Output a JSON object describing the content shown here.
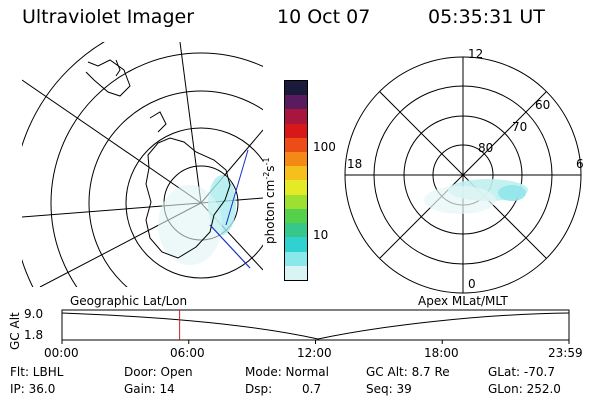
{
  "header": {
    "instrument": "Ultraviolet Imager",
    "date": "10 Oct 07",
    "time": "05:35:31 UT"
  },
  "colorbar": {
    "ticks": [
      "100",
      "10"
    ],
    "unit_prefix": "photon cm",
    "unit_exp1": "-2",
    "unit_s": "s",
    "unit_exp2": "-1",
    "colors": [
      "#d8f4f4",
      "#8ae8ea",
      "#2fd2d0",
      "#35c88a",
      "#54d04a",
      "#9ee032",
      "#e4ea26",
      "#f6c01c",
      "#f48a16",
      "#ee4c16",
      "#d81818",
      "#a81640",
      "#5a1a5e",
      "#1a1a3a"
    ]
  },
  "polar": {
    "lat_labels": [
      "80",
      "70",
      "60"
    ],
    "mlt_labels": {
      "top": "12",
      "left": "18",
      "right": "6",
      "bottom": "0"
    }
  },
  "panels": {
    "left_caption": "Geographic Lat/Lon",
    "right_caption": "Apex MLat/MLT"
  },
  "timeline": {
    "y_label": "GC Alt",
    "y_ticks": [
      "9.0",
      "1.8"
    ],
    "x_ticks": [
      "00:00",
      "06:00",
      "12:00",
      "18:00",
      "23:59"
    ],
    "current_time_fraction": 0.232
  },
  "status": {
    "flt": "Flt: LBHL",
    "ip": "IP: 36.0",
    "door": "Door: Open",
    "gain": "Gain: 14",
    "mode": "Mode: Normal",
    "dsp": "Dsp:",
    "dsp_value": "0.7",
    "gc_alt": "GC Alt: 8.7 Re",
    "seq": "Seq: 39",
    "glat": "GLat: -70.7",
    "glon": "GLon: 252.0"
  }
}
